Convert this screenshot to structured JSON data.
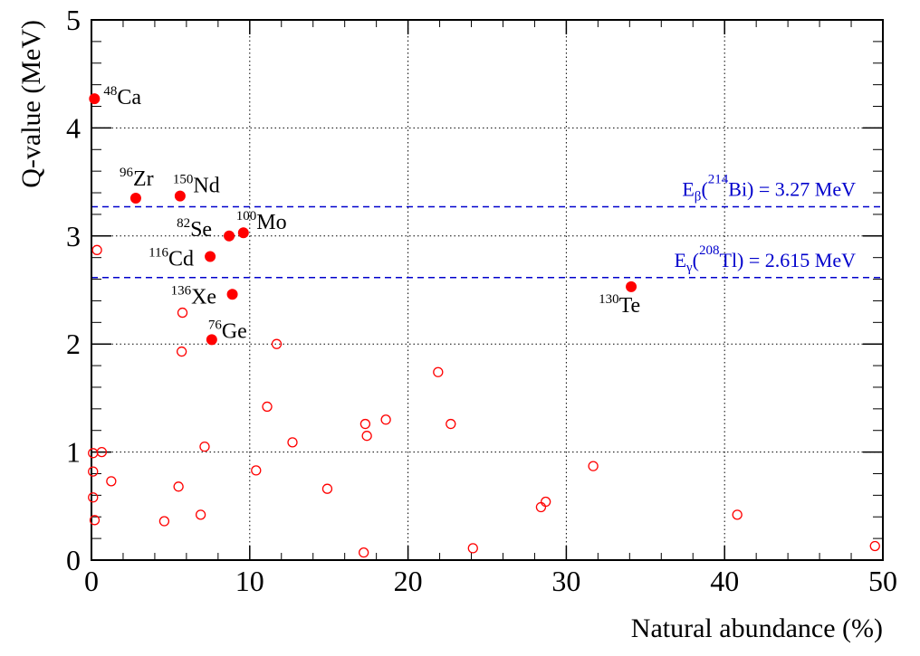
{
  "chart_data": {
    "type": "scatter",
    "title": "",
    "xlabel": "Natural abundance (%)",
    "ylabel": "Q-value (MeV)",
    "xlim": [
      0,
      50
    ],
    "ylim": [
      0,
      5
    ],
    "x_ticks": [
      "0",
      "10",
      "20",
      "30",
      "40",
      "50"
    ],
    "y_ticks": [
      "0",
      "1",
      "2",
      "3",
      "4",
      "5"
    ],
    "grid": true,
    "colors": {
      "points": "#ff0000",
      "reference_lines": "#0000cc",
      "grid": "#000000"
    },
    "reference_lines": [
      {
        "y": 3.27,
        "sym": "E",
        "sub": "β",
        "open": "(",
        "sup": "214",
        "rest": "Bi) = 3.27 MeV"
      },
      {
        "y": 2.615,
        "sym": "E",
        "sub": "γ",
        "open": "(",
        "sup": "208",
        "rest": "Tl) = 2.615 MeV"
      }
    ],
    "labeled_points": [
      {
        "mass": "48",
        "element": "Ca",
        "x": 0.19,
        "y": 4.27
      },
      {
        "mass": "96",
        "element": "Zr",
        "x": 2.8,
        "y": 3.35
      },
      {
        "mass": "150",
        "element": "Nd",
        "x": 5.6,
        "y": 3.37
      },
      {
        "mass": "82",
        "element": "Se",
        "x": 8.7,
        "y": 3.0
      },
      {
        "mass": "100",
        "element": "Mo",
        "x": 9.6,
        "y": 3.03
      },
      {
        "mass": "116",
        "element": "Cd",
        "x": 7.5,
        "y": 2.81
      },
      {
        "mass": "136",
        "element": "Xe",
        "x": 8.9,
        "y": 2.46
      },
      {
        "mass": "76",
        "element": "Ge",
        "x": 7.6,
        "y": 2.04
      },
      {
        "mass": "130",
        "element": "Te",
        "x": 34.1,
        "y": 2.53
      }
    ],
    "other_points": [
      {
        "x": 0.1,
        "y": 0.99
      },
      {
        "x": 0.65,
        "y": 1.0
      },
      {
        "x": 0.1,
        "y": 0.82
      },
      {
        "x": 1.25,
        "y": 0.73
      },
      {
        "x": 0.1,
        "y": 0.58
      },
      {
        "x": 0.2,
        "y": 0.37
      },
      {
        "x": 0.35,
        "y": 2.87
      },
      {
        "x": 5.75,
        "y": 2.29
      },
      {
        "x": 5.7,
        "y": 1.93
      },
      {
        "x": 11.7,
        "y": 2.0
      },
      {
        "x": 11.1,
        "y": 1.42
      },
      {
        "x": 7.15,
        "y": 1.05
      },
      {
        "x": 12.7,
        "y": 1.09
      },
      {
        "x": 10.4,
        "y": 0.83
      },
      {
        "x": 5.5,
        "y": 0.68
      },
      {
        "x": 6.9,
        "y": 0.42
      },
      {
        "x": 4.6,
        "y": 0.36
      },
      {
        "x": 14.9,
        "y": 0.66
      },
      {
        "x": 17.2,
        "y": 0.07
      },
      {
        "x": 17.3,
        "y": 1.26
      },
      {
        "x": 17.4,
        "y": 1.15
      },
      {
        "x": 18.6,
        "y": 1.3
      },
      {
        "x": 21.9,
        "y": 1.74
      },
      {
        "x": 22.7,
        "y": 1.26
      },
      {
        "x": 24.1,
        "y": 0.11
      },
      {
        "x": 28.4,
        "y": 0.49
      },
      {
        "x": 28.7,
        "y": 0.54
      },
      {
        "x": 31.7,
        "y": 0.87
      },
      {
        "x": 40.8,
        "y": 0.42
      },
      {
        "x": 49.5,
        "y": 0.13
      }
    ]
  }
}
